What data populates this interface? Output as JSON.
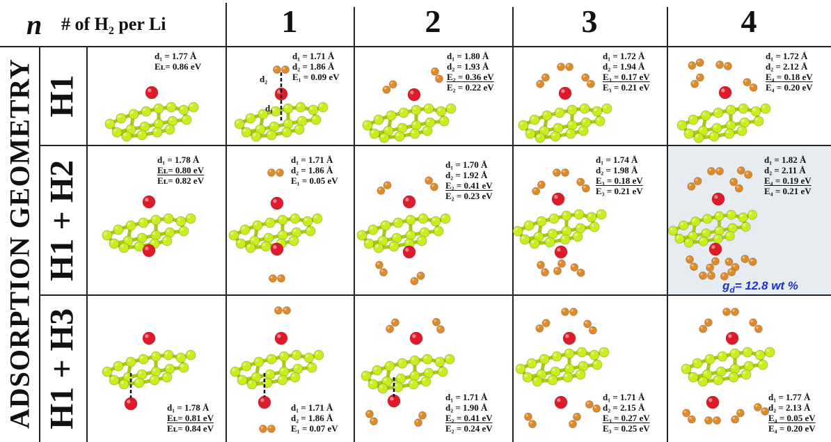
{
  "header": {
    "n_symbol": "n",
    "per_li_prefix": "# of  H",
    "per_li_sub": "2",
    "per_li_suffix": " per Li",
    "columns": [
      "1",
      "2",
      "3",
      "4"
    ]
  },
  "side_label": "ADSORPTION GEOMETRY",
  "rows": [
    {
      "label": "H1"
    },
    {
      "label": "H1 + H2"
    },
    {
      "label": "H1 + H3"
    }
  ],
  "annotations": {
    "r1c0": [
      "d₁ = 1.77 Å",
      "Eʟ= 0.86 eV"
    ],
    "r1c1": [
      "d₁ = 1.71 Å",
      "d₂ = 1.86 Å",
      "E₁ = 0.09 eV"
    ],
    "r1c2": [
      "d₁ = 1.80 Å",
      "d₂ = 1.93 Å",
      "E₂ = 0.36 eV",
      "E₂ = 0.22 eV"
    ],
    "r1c3": [
      "d₁ = 1.72 Å",
      "d₂ = 1.94 Å",
      "E₃ = 0.17 eV",
      "E₃ = 0.21 eV"
    ],
    "r1c4": [
      "d₁ = 1.72 Å",
      "d₂ = 2.12 Å",
      "E₄ = 0.18 eV",
      "E₄ = 0.20 eV"
    ],
    "r2c0": [
      "d₁ = 1.78 Å",
      "Eʟ= 0.80 eV",
      "Eʟ= 0.82 eV"
    ],
    "r2c1": [
      "d₁ = 1.71 Å",
      "d₂ = 1.86 Å",
      "E₁ = 0.05 eV"
    ],
    "r2c2": [
      "d₁ = 1.70 Å",
      "d₂ = 1.92 Å",
      "E₂ = 0.41 eV",
      "E₂ = 0.23 eV"
    ],
    "r2c3": [
      "d₁ = 1.74 Å",
      "d₂ = 1.98 Å",
      "E₃ = 0.18 eV",
      "E₃ = 0.21 eV"
    ],
    "r2c4": [
      "d₁ = 1.82 Å",
      "d₂ = 2.11 Å",
      "E₄ = 0.19 eV",
      "E₄ = 0.21 eV"
    ],
    "r3c0": [
      "d₁ = 1.78 Å",
      "Eʟ= 0.81 eV",
      "Eʟ= 0.84 eV"
    ],
    "r3c1": [
      "d₁ = 1.71 Å",
      "d₂ = 1.86 Å",
      "E₁ = 0.07 eV"
    ],
    "r3c2": [
      "d₁ = 1.71 Å",
      "d₂ = 1.90 Å",
      "E₂ = 0.41 eV",
      "E₂ = 0.24 eV"
    ],
    "r3c3": [
      "d₁ = 1.71 Å",
      "d₂ = 2.15 Å",
      "E₃ = 0.27 eV",
      "E₃ = 0.25 eV"
    ],
    "r3c4": [
      "d₁ = 1.77 Å",
      "d₂ = 2.13 Å",
      "E₄ = 0.05 eV",
      "E₄ = 0.20 eV"
    ]
  },
  "inline_labels": {
    "d1": "d₁",
    "d2": "d₂"
  },
  "gd_label": {
    "symbol": "g",
    "sub": "d",
    "text": "= 12.8 wt %"
  },
  "colors": {
    "carbon": "#c8ee1e",
    "lithium": "#e01a2b",
    "hydrogen": "#e08a28",
    "highlight": "#e6ecf0",
    "gd_text": "#1c2fd0"
  }
}
